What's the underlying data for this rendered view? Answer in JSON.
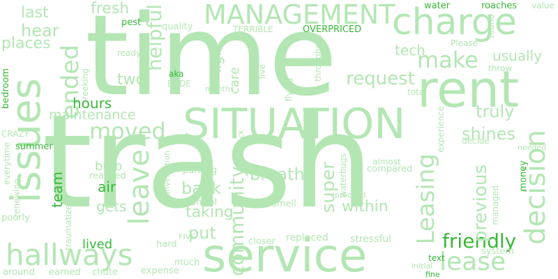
{
  "colors": {
    "background": "#ffffff",
    "palette": [
      "#b3e6b3",
      "#c3ecc3",
      "#a3e0a3",
      "#38b838",
      "#d4f2d4"
    ]
  },
  "words": [
    {
      "text": "trash",
      "color": "#b3e6b3"
    },
    {
      "text": "time",
      "color": "#b3e6b3"
    },
    {
      "text": "rent",
      "color": "#b3e6b3"
    },
    {
      "text": "service",
      "color": "#b3e6b3"
    },
    {
      "text": "SITUATION",
      "color": "#b3e6b3"
    },
    {
      "text": "issues",
      "color": "#b3e6b3"
    },
    {
      "text": "charge",
      "color": "#b3e6b3"
    },
    {
      "text": "MANAGEMENT",
      "color": "#b3e6b3"
    },
    {
      "text": "hallways",
      "color": "#b3e6b3"
    },
    {
      "text": "lease",
      "color": "#b3e6b3"
    },
    {
      "text": "decision",
      "color": "#b3e6b3"
    },
    {
      "text": "Leasing",
      "color": "#b3e6b3"
    },
    {
      "text": "moved",
      "color": "#b3e6b3"
    },
    {
      "text": "leave",
      "color": "#b3e6b3"
    },
    {
      "text": "make",
      "color": "#b3e6b3"
    },
    {
      "text": "ended",
      "color": "#b3e6b3"
    },
    {
      "text": "helpful",
      "color": "#b3e6b3"
    },
    {
      "text": "request",
      "color": "#b3e6b3"
    },
    {
      "text": "friendly",
      "color": "#38b838"
    },
    {
      "text": "community",
      "color": "#b3e6b3"
    },
    {
      "text": "super",
      "color": "#b3e6b3"
    },
    {
      "text": "previous",
      "color": "#b3e6b3"
    },
    {
      "text": "breath",
      "color": "#b3e6b3"
    },
    {
      "text": "shines",
      "color": "#b3e6b3"
    },
    {
      "text": "truly",
      "color": "#b3e6b3"
    },
    {
      "text": "fresh",
      "color": "#b3e6b3"
    },
    {
      "text": "hear",
      "color": "#b3e6b3"
    },
    {
      "text": "last",
      "color": "#b3e6b3"
    },
    {
      "text": "places",
      "color": "#b3e6b3"
    },
    {
      "text": "tech",
      "color": "#b3e6b3"
    },
    {
      "text": "usually",
      "color": "#b3e6b3"
    },
    {
      "text": "two",
      "color": "#b3e6b3"
    },
    {
      "text": "hours",
      "color": "#38b838"
    },
    {
      "text": "maintenance",
      "color": "#b3e6b3"
    },
    {
      "text": "back",
      "color": "#b3e6b3"
    },
    {
      "text": "taking",
      "color": "#b3e6b3"
    },
    {
      "text": "put",
      "color": "#b3e6b3"
    },
    {
      "text": "within",
      "color": "#b3e6b3"
    },
    {
      "text": "team",
      "color": "#38b838"
    },
    {
      "text": "air",
      "color": "#38b838"
    },
    {
      "text": "gets",
      "color": "#b3e6b3"
    },
    {
      "text": "bulb",
      "color": "#b3e6b3"
    },
    {
      "text": "lived",
      "color": "#38b838"
    },
    {
      "text": "light",
      "color": "#b3e6b3"
    },
    {
      "text": "care",
      "color": "#b3e6b3"
    },
    {
      "text": "water",
      "color": "#38b838"
    },
    {
      "text": "roaches",
      "color": "#38b838"
    },
    {
      "text": "value",
      "color": "#b3e6b3"
    },
    {
      "text": "quality",
      "color": "#b3e6b3"
    },
    {
      "text": "TERRIBLE",
      "color": "#b3e6b3"
    },
    {
      "text": "OVERPRICED",
      "color": "#38b838"
    },
    {
      "text": "pest",
      "color": "#38b838"
    },
    {
      "text": "ready",
      "color": "#b3e6b3"
    },
    {
      "text": "aka",
      "color": "#38b838"
    },
    {
      "text": "RUDE",
      "color": "#b3e6b3"
    },
    {
      "text": "Please",
      "color": "#b3e6b3"
    },
    {
      "text": "found",
      "color": "#b3e6b3"
    },
    {
      "text": "throw",
      "color": "#b3e6b3"
    },
    {
      "text": "live",
      "color": "#b3e6b3"
    },
    {
      "text": "flying",
      "color": "#b3e6b3"
    },
    {
      "text": "throughout",
      "color": "#b3e6b3"
    },
    {
      "text": "total",
      "color": "#b3e6b3"
    },
    {
      "text": "months",
      "color": "#b3e6b3"
    },
    {
      "text": "reeking",
      "color": "#b3e6b3"
    },
    {
      "text": "bedroom",
      "color": "#38b838"
    },
    {
      "text": "CRAZY",
      "color": "#b3e6b3"
    },
    {
      "text": "summer",
      "color": "#38b838"
    },
    {
      "text": "everytime",
      "color": "#b3e6b3"
    },
    {
      "text": "renewing",
      "color": "#b3e6b3"
    },
    {
      "text": "poorly",
      "color": "#b3e6b3"
    },
    {
      "text": "traumatized",
      "color": "#b3e6b3"
    },
    {
      "text": "reached",
      "color": "#b3e6b3"
    },
    {
      "text": "conversation",
      "color": "#b3e6b3"
    },
    {
      "text": "parking",
      "color": "#b3e6b3"
    },
    {
      "text": "control",
      "color": "#b3e6b3"
    },
    {
      "text": "smell",
      "color": "#b3e6b3"
    },
    {
      "text": "knock",
      "color": "#b3e6b3"
    },
    {
      "text": "waterbugs",
      "color": "#b3e6b3"
    },
    {
      "text": "almost",
      "color": "#b3e6b3"
    },
    {
      "text": "compared",
      "color": "#b3e6b3"
    },
    {
      "text": "experience",
      "color": "#b3e6b3"
    },
    {
      "text": "decide",
      "color": "#b3e6b3"
    },
    {
      "text": "needed",
      "color": "#b3e6b3"
    },
    {
      "text": "money",
      "color": "#38b838"
    },
    {
      "text": "managed",
      "color": "#b3e6b3"
    },
    {
      "text": "proceed",
      "color": "#b3e6b3"
    },
    {
      "text": "closer",
      "color": "#b3e6b3"
    },
    {
      "text": "replaced",
      "color": "#b3e6b3"
    },
    {
      "text": "stressful",
      "color": "#b3e6b3"
    },
    {
      "text": "system",
      "color": "#b3e6b3"
    },
    {
      "text": "FIVE",
      "color": "#b3e6b3"
    },
    {
      "text": "hard",
      "color": "#b3e6b3"
    },
    {
      "text": "much",
      "color": "#b3e6b3"
    },
    {
      "text": "expense",
      "color": "#b3e6b3"
    },
    {
      "text": "text",
      "color": "#38b838"
    },
    {
      "text": "fine",
      "color": "#38b838"
    },
    {
      "text": "initial",
      "color": "#b3e6b3"
    },
    {
      "text": "around",
      "color": "#b3e6b3"
    },
    {
      "text": "earned",
      "color": "#b3e6b3"
    },
    {
      "text": "chute",
      "color": "#b3e6b3"
    }
  ]
}
